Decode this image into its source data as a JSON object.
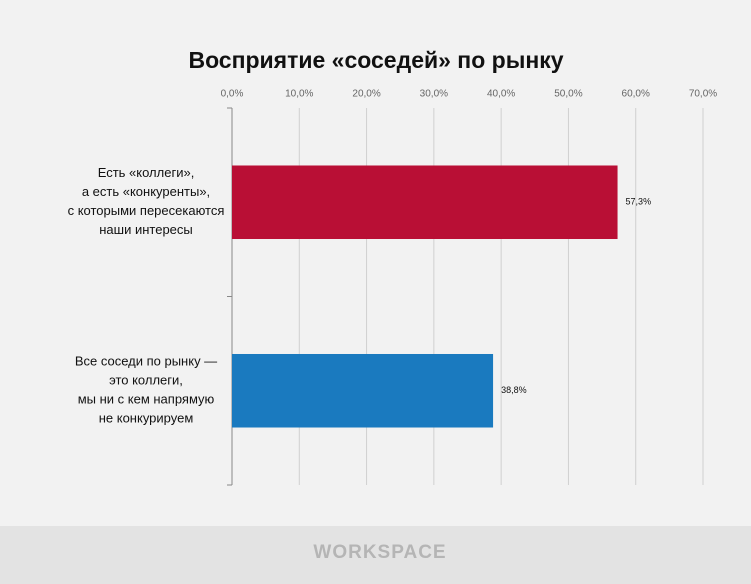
{
  "chart_data": {
    "type": "hbar",
    "title": "Восприятие «соседей» по рынку",
    "categories": [
      "Есть «коллеги»,\nа есть «конкуренты»,\nс которыми пересекаются\nнаши интересы",
      "Все соседи по рынку —\nэто коллеги,\nмы ни с кем напрямую\nне конкурируем"
    ],
    "values": [
      57.3,
      38.8
    ],
    "value_labels": [
      "57,3%",
      "38,8%"
    ],
    "colors": [
      "#b90f35",
      "#1a7abf"
    ],
    "xlim": [
      0,
      70
    ],
    "xticks": [
      {
        "value": 0,
        "label": "0,0%"
      },
      {
        "value": 10,
        "label": "10,0%"
      },
      {
        "value": 20,
        "label": "20,0%"
      },
      {
        "value": 30,
        "label": "30,0%"
      },
      {
        "value": 40,
        "label": "40,0%"
      },
      {
        "value": 50,
        "label": "50,0%"
      },
      {
        "value": 60,
        "label": "60,0%"
      },
      {
        "value": 70,
        "label": "70,0%"
      }
    ],
    "grid": true
  },
  "footer": "WORKSPACE"
}
